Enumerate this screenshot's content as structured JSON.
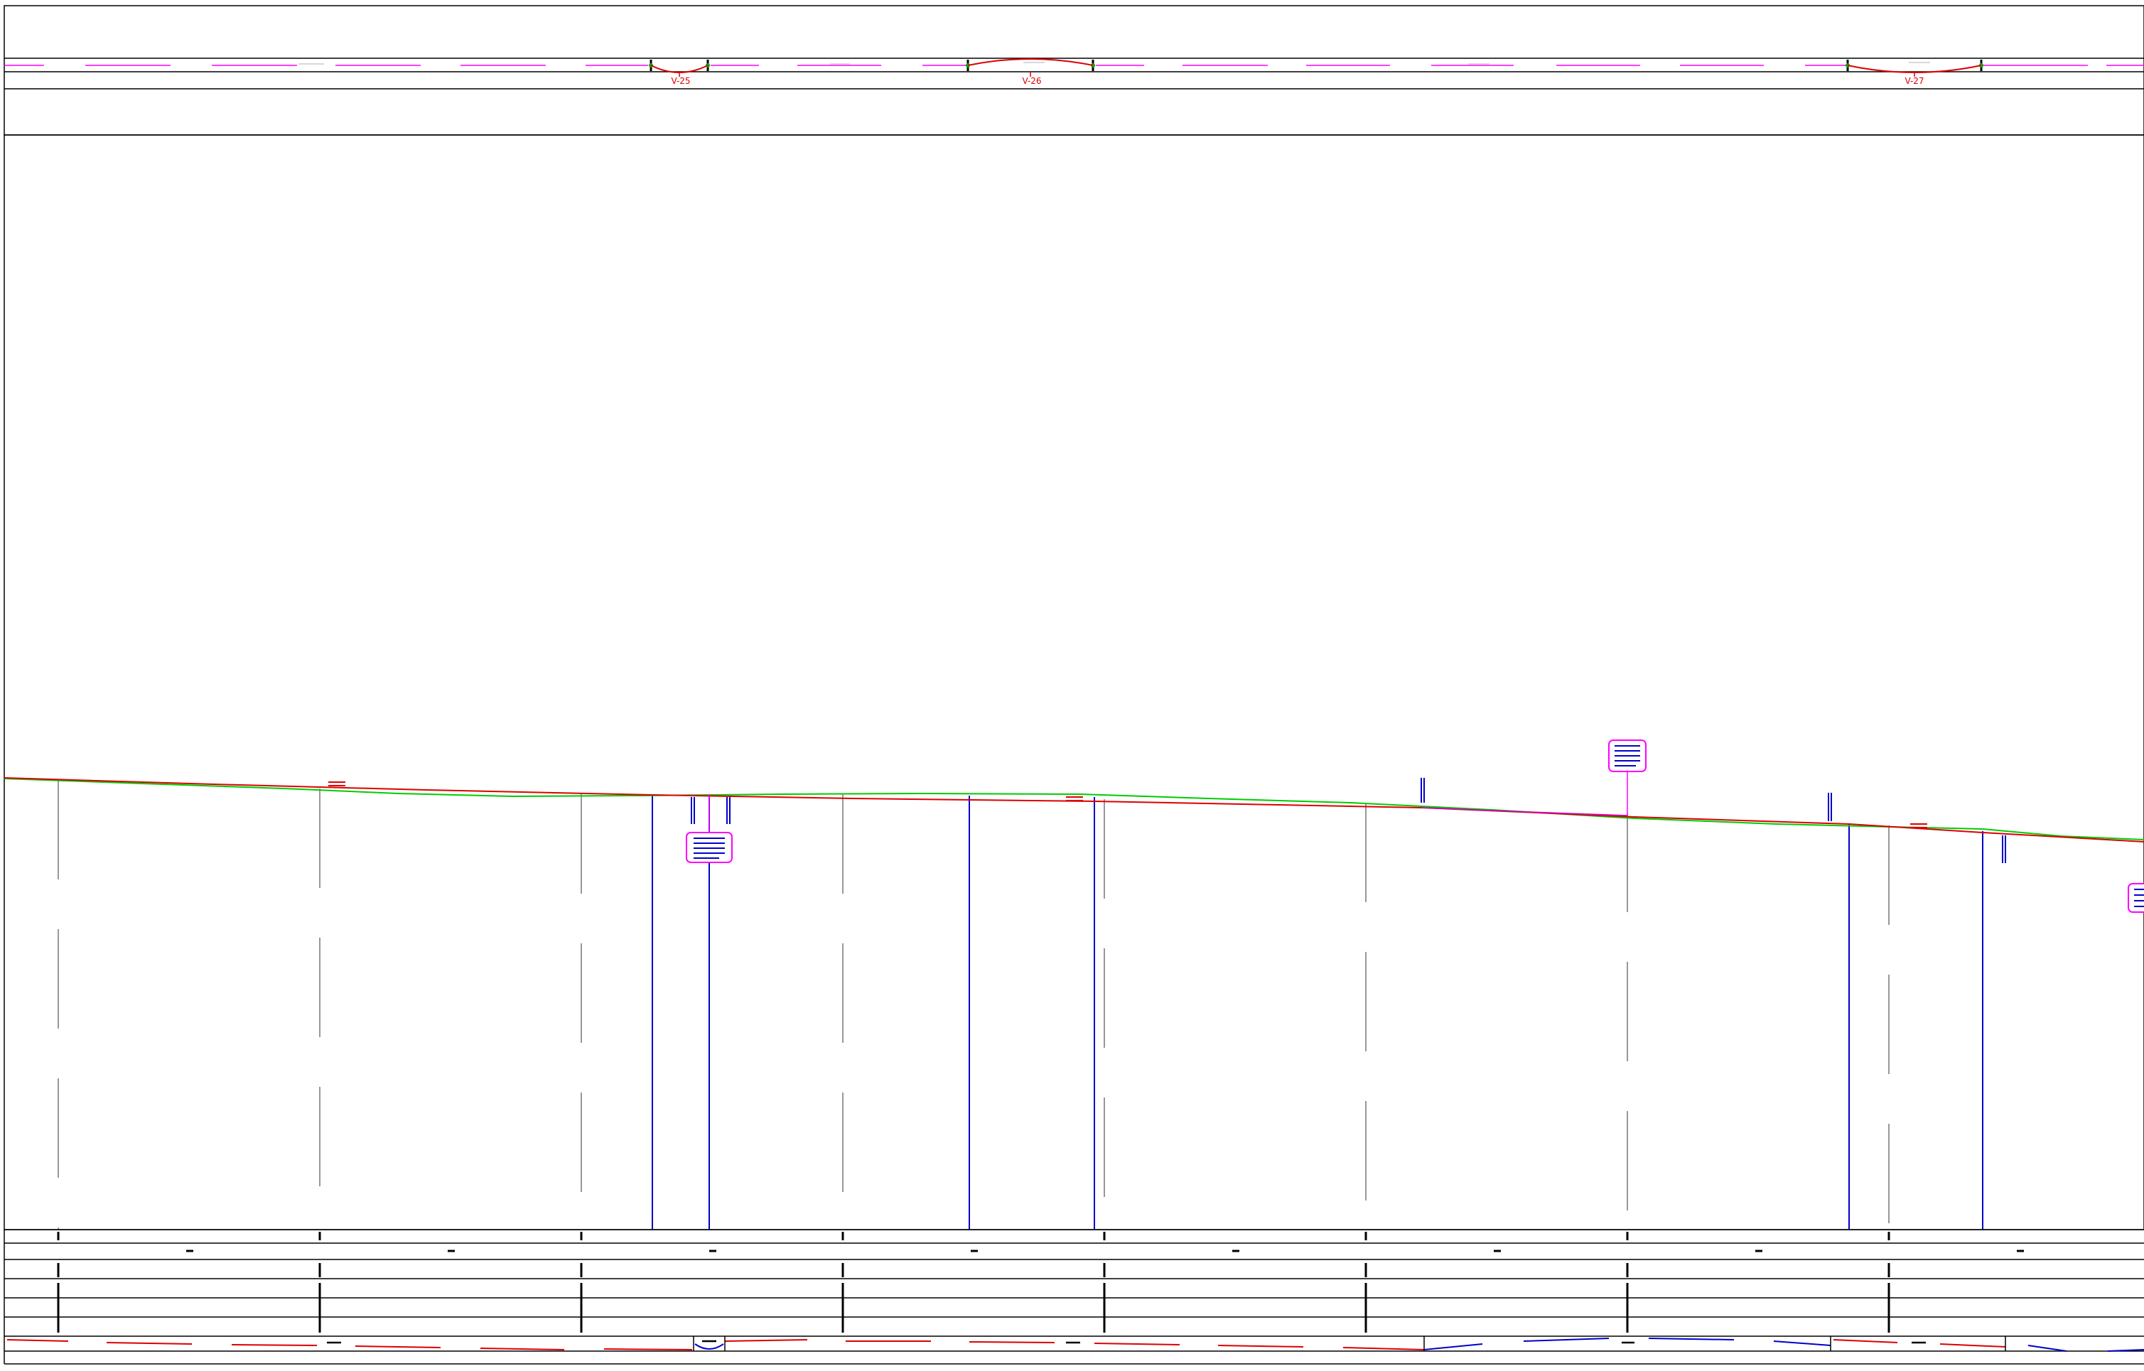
{
  "plan_strip": {
    "labels": [
      "V-25",
      "V-26",
      "V-27"
    ]
  },
  "colors": {
    "frame": "#000000",
    "existing_ground": "#00cc00",
    "design_grade": "#dd0000",
    "grade_alt": "#cc00cc",
    "structures": "#0000cc",
    "plan_markers": "#ff00ff",
    "label_box_border": "#ff00ff",
    "label_text": "#0000cc"
  },
  "icons": [
    "station-tick",
    "label-box",
    "vertical-curve-marker"
  ]
}
